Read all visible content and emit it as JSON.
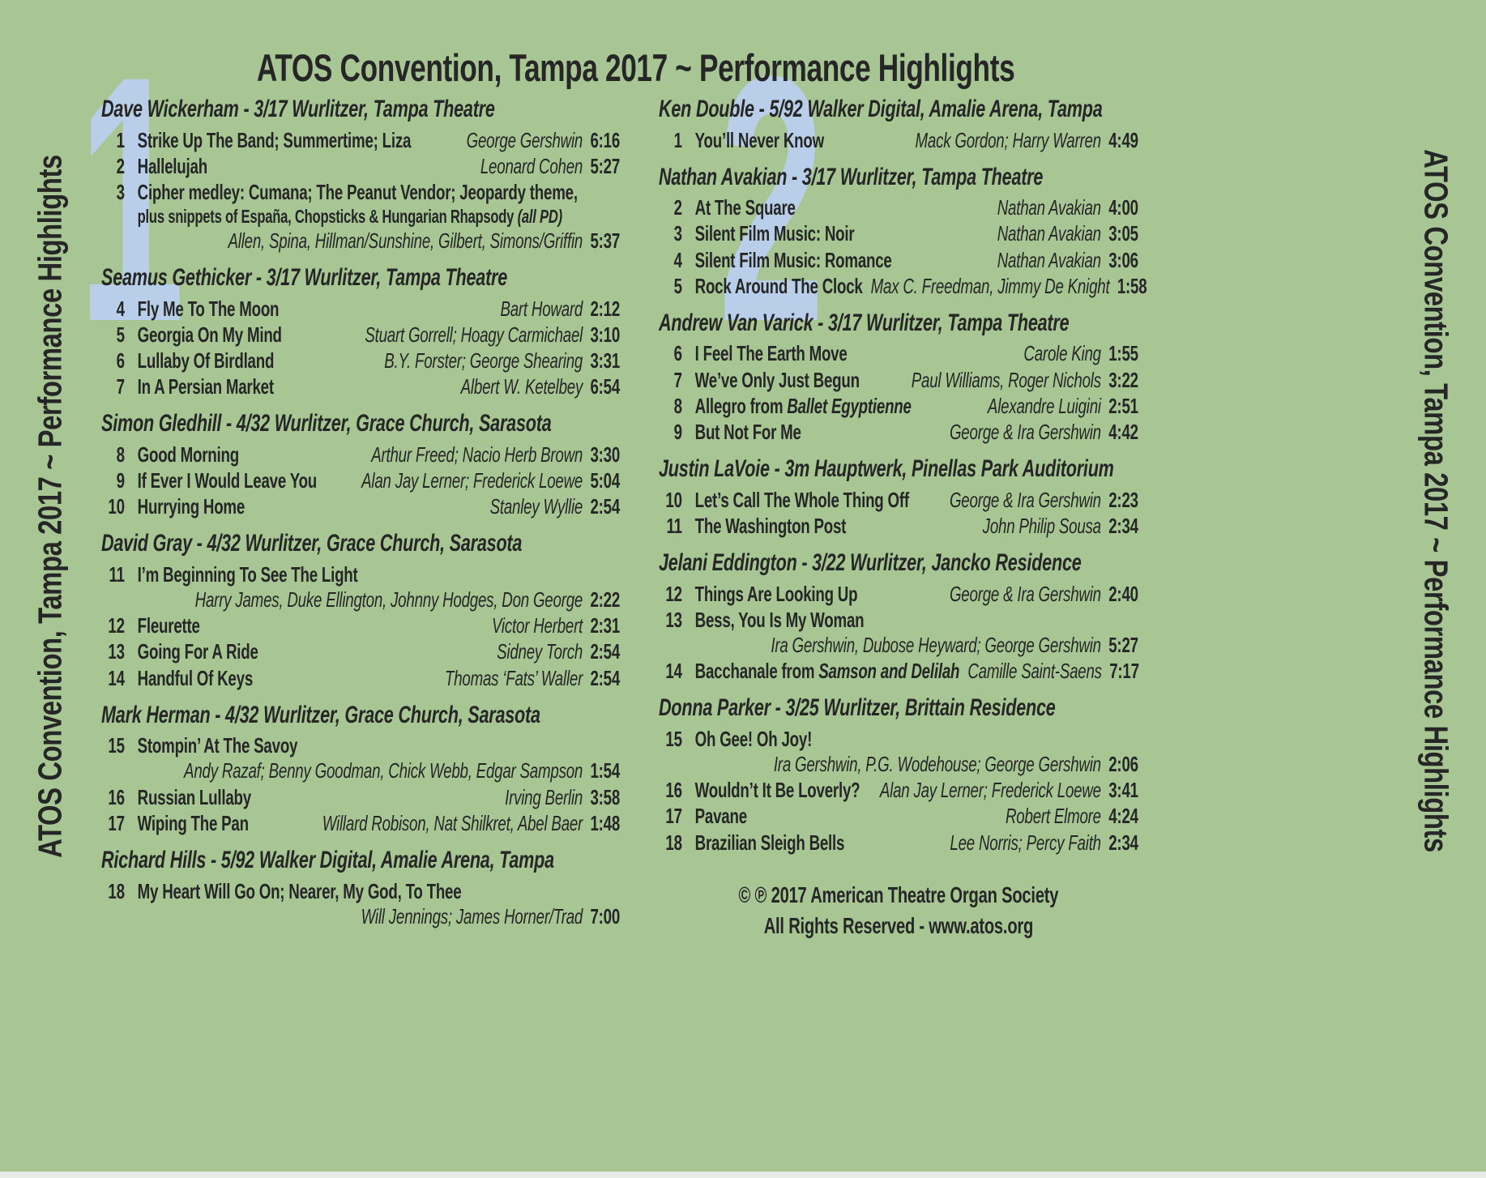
{
  "title": "ATOS Convention, Tampa 2017 ~ Performance Highlights",
  "spine_text": "ATOS Convention, Tampa 2017 ~ Performance Highlights",
  "colors": {
    "background": "#a7c694",
    "watermark_blue": "#b9cfe9",
    "text": "#262626"
  },
  "copyright": {
    "line1": "© ℗ 2017 American Theatre Organ Society",
    "line2": "All Rights Reserved - www.atos.org"
  },
  "discs": [
    {
      "number": "1",
      "sections": [
        {
          "artist": "Dave Wickerham - 3/17 Wurlitzer, Tampa Theatre",
          "tracks": [
            {
              "num": "1",
              "title": "Strike Up The Band; Summertime; Liza",
              "composer": "George Gershwin",
              "time": "6:16"
            },
            {
              "num": "2",
              "title": "Hallelujah",
              "composer": "Leonard Cohen",
              "time": "5:27"
            },
            {
              "num": "3",
              "title": "Cipher medley: Cumana; The Peanut Vendor; Jeopardy theme,",
              "note": "plus snippets of España, Chopsticks & Hungarian Rhapsody ",
              "note_em": "(all PD)",
              "composer": "Allen, Spina, Hillman/Sunshine, Gilbert, Simons/Griffin",
              "composer_own_line": true,
              "time": "5:37"
            }
          ]
        },
        {
          "artist": "Seamus Gethicker - 3/17 Wurlitzer, Tampa Theatre",
          "tracks": [
            {
              "num": "4",
              "title": "Fly Me To The Moon",
              "composer": "Bart Howard",
              "time": "2:12"
            },
            {
              "num": "5",
              "title": "Georgia On My Mind",
              "composer": "Stuart Gorrell; Hoagy Carmichael",
              "time": "3:10"
            },
            {
              "num": "6",
              "title": "Lullaby Of Birdland",
              "composer": "B.Y. Forster; George Shearing",
              "time": "3:31"
            },
            {
              "num": "7",
              "title": "In A Persian Market",
              "composer": "Albert W. Ketelbey",
              "time": "6:54"
            }
          ]
        },
        {
          "artist": "Simon Gledhill - 4/32 Wurlitzer, Grace Church, Sarasota",
          "tracks": [
            {
              "num": "8",
              "title": "Good Morning",
              "composer": "Arthur Freed; Nacio Herb Brown",
              "time": "3:30"
            },
            {
              "num": "9",
              "title": "If Ever I Would Leave You",
              "composer": "Alan Jay Lerner; Frederick Loewe",
              "time": "5:04"
            },
            {
              "num": "10",
              "title": "Hurrying Home",
              "composer": "Stanley Wyllie",
              "time": "2:54"
            }
          ]
        },
        {
          "artist": "David Gray - 4/32 Wurlitzer, Grace Church, Sarasota",
          "tracks": [
            {
              "num": "11",
              "title": "I’m Beginning To See The Light",
              "composer": "Harry James, Duke Ellington, Johnny Hodges, Don George",
              "composer_own_line": true,
              "time": "2:22"
            },
            {
              "num": "12",
              "title": "Fleurette",
              "composer": "Victor Herbert",
              "time": "2:31"
            },
            {
              "num": "13",
              "title": "Going For A Ride",
              "composer": "Sidney Torch",
              "time": "2:54"
            },
            {
              "num": "14",
              "title": "Handful Of Keys",
              "composer": "Thomas ‘Fats’ Waller",
              "time": "2:54"
            }
          ]
        },
        {
          "artist": "Mark Herman - 4/32 Wurlitzer, Grace Church, Sarasota",
          "tracks": [
            {
              "num": "15",
              "title": "Stompin’ At The Savoy",
              "composer": "Andy Razaf; Benny Goodman, Chick Webb, Edgar Sampson",
              "composer_own_line": true,
              "time": "1:54"
            },
            {
              "num": "16",
              "title": "Russian Lullaby",
              "composer": "Irving Berlin",
              "time": "3:58"
            },
            {
              "num": "17",
              "title": "Wiping The Pan",
              "composer": "Willard Robison, Nat Shilkret, Abel Baer",
              "time": "1:48"
            }
          ]
        },
        {
          "artist": "Richard Hills - 5/92 Walker Digital, Amalie Arena, Tampa",
          "tracks": [
            {
              "num": "18",
              "title": "My Heart Will Go On; Nearer, My God, To Thee",
              "composer": "Will Jennings; James Horner/Trad",
              "composer_own_line": true,
              "time": "7:00"
            }
          ]
        }
      ]
    },
    {
      "number": "2",
      "sections": [
        {
          "artist": "Ken Double - 5/92 Walker Digital, Amalie Arena, Tampa",
          "tracks": [
            {
              "num": "1",
              "title": "You’ll Never Know",
              "composer": "Mack Gordon; Harry Warren",
              "time": "4:49"
            }
          ]
        },
        {
          "artist": "Nathan Avakian - 3/17 Wurlitzer, Tampa Theatre",
          "tracks": [
            {
              "num": "2",
              "title": "At The Square",
              "composer": "Nathan Avakian",
              "time": "4:00"
            },
            {
              "num": "3",
              "title": "Silent Film Music: Noir",
              "composer": "Nathan Avakian",
              "time": "3:05"
            },
            {
              "num": "4",
              "title": "Silent Film Music: Romance",
              "composer": "Nathan Avakian",
              "time": "3:06"
            },
            {
              "num": "5",
              "title": "Rock Around The Clock",
              "composer": "Max C. Freedman, Jimmy De Knight",
              "time": "1:58"
            }
          ]
        },
        {
          "artist": "Andrew Van Varick - 3/17 Wurlitzer, Tampa Theatre",
          "tracks": [
            {
              "num": "6",
              "title": "I Feel The Earth Move",
              "composer": "Carole King",
              "time": "1:55"
            },
            {
              "num": "7",
              "title": "We’ve Only Just Begun",
              "composer": "Paul Williams, Roger Nichols",
              "time": "3:22"
            },
            {
              "num": "8",
              "title": "Allegro from ",
              "title_em": "Ballet Egyptienne",
              "composer": "Alexandre Luigini",
              "time": "2:51"
            },
            {
              "num": "9",
              "title": "But Not For Me",
              "composer": "George & Ira Gershwin",
              "time": "4:42"
            }
          ]
        },
        {
          "artist": "Justin LaVoie - 3m Hauptwerk, Pinellas Park Auditorium",
          "tracks": [
            {
              "num": "10",
              "title": "Let’s Call The Whole Thing Off",
              "composer": "George & Ira Gershwin",
              "time": "2:23"
            },
            {
              "num": "11",
              "title": "The Washington Post",
              "composer": "John Philip Sousa",
              "time": "2:34"
            }
          ]
        },
        {
          "artist": "Jelani Eddington - 3/22 Wurlitzer, Jancko Residence",
          "tracks": [
            {
              "num": "12",
              "title": "Things Are Looking Up",
              "composer": "George & Ira Gershwin",
              "time": "2:40"
            },
            {
              "num": "13",
              "title": "Bess, You Is My Woman",
              "composer": "Ira Gershwin, Dubose Heyward; George Gershwin",
              "composer_own_line": true,
              "time": "5:27"
            },
            {
              "num": "14",
              "title": "Bacchanale from ",
              "title_em": "Samson and Delilah",
              "composer": "Camille Saint-Saens",
              "time": "7:17"
            }
          ]
        },
        {
          "artist": "Donna Parker - 3/25 Wurlitzer, Brittain Residence",
          "tracks": [
            {
              "num": "15",
              "title": "Oh Gee! Oh Joy!",
              "composer": "Ira Gershwin, P.G. Wodehouse; George Gershwin",
              "composer_own_line": true,
              "time": "2:06"
            },
            {
              "num": "16",
              "title": "Wouldn’t It Be Loverly?",
              "composer": "Alan Jay Lerner; Frederick Loewe",
              "time": "3:41"
            },
            {
              "num": "17",
              "title": "Pavane",
              "composer": "Robert Elmore",
              "time": "4:24"
            },
            {
              "num": "18",
              "title": "Brazilian Sleigh Bells",
              "composer": "Lee Norris; Percy Faith",
              "time": "2:34"
            }
          ]
        }
      ]
    }
  ]
}
